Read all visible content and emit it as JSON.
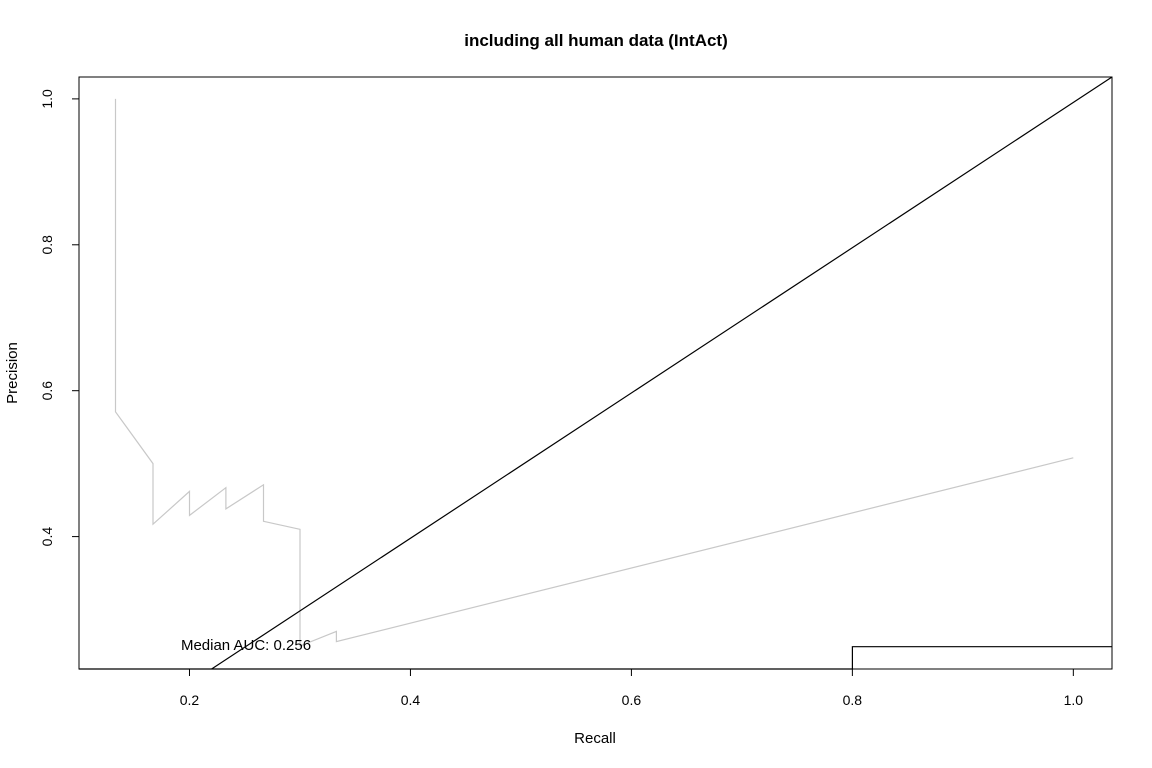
{
  "chart_data": {
    "type": "line",
    "title": "including all human data (IntAct)",
    "xlabel": "Recall",
    "ylabel": "Precision",
    "xlim": [
      0.1,
      1.035
    ],
    "ylim": [
      0.2185,
      1.03
    ],
    "x_ticks": [
      "0.2",
      "0.4",
      "0.6",
      "0.8",
      "1.0"
    ],
    "y_ticks": [
      "0.4",
      "0.6",
      "0.8",
      "1.0"
    ],
    "grid": false,
    "annotation": "Median AUC: 0.256",
    "series": [
      {
        "color": "#c8c8c8",
        "x": [
          0.133,
          0.133,
          0.167,
          0.167,
          0.2,
          0.2,
          0.233,
          0.233,
          0.267,
          0.267,
          0.3,
          0.3,
          0.333,
          0.333,
          1.0
        ],
        "y": [
          1.0,
          0.571,
          0.5,
          0.417,
          0.462,
          0.429,
          0.467,
          0.438,
          0.471,
          0.421,
          0.41,
          0.25,
          0.27,
          0.256,
          0.508
        ]
      },
      {
        "color": "#000000",
        "x": [
          0.1,
          0.8,
          0.8,
          1.035
        ],
        "y": [
          0.2185,
          0.2185,
          0.249,
          0.249
        ]
      },
      {
        "color": "#000000",
        "x": [
          0.22,
          1.035
        ],
        "y": [
          0.2185,
          1.03
        ]
      }
    ]
  }
}
